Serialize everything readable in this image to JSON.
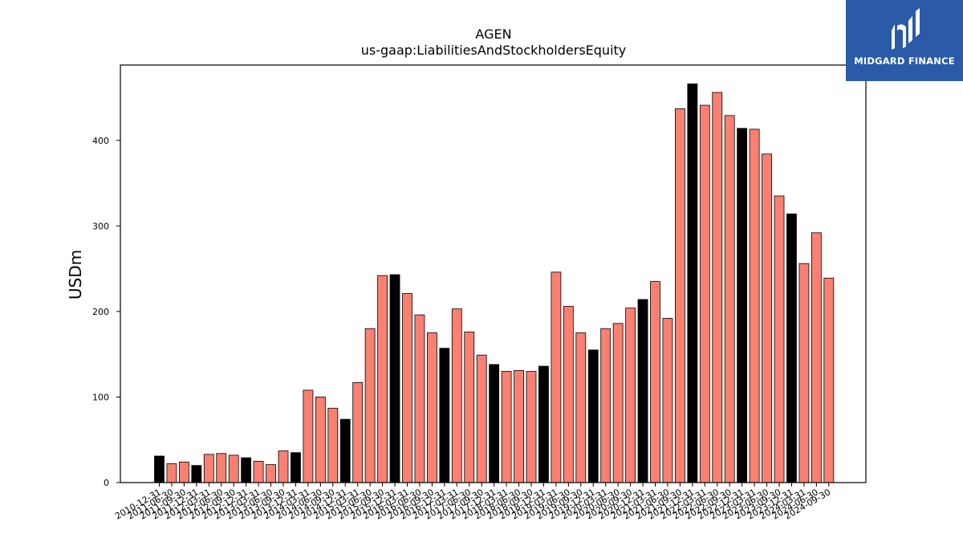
{
  "chart_data": {
    "type": "bar",
    "title": "AGEN",
    "subtitle": "us-gaap:LiabilitiesAndStockholdersEquity",
    "xlabel": "",
    "ylabel": "USDm",
    "ylim": [
      0,
      488
    ],
    "yticks": [
      0,
      100,
      200,
      300,
      400
    ],
    "grid": false,
    "colors": {
      "annual": "#000000",
      "quarterly": "#fa8072",
      "edge": "#000000"
    },
    "categories": [
      "2010-12-31",
      "2011-06-30",
      "2011-09-30",
      "2011-12-31",
      "2012-03-31",
      "2012-06-30",
      "2012-09-30",
      "2012-12-31",
      "2013-03-31",
      "2013-06-30",
      "2013-09-30",
      "2013-12-31",
      "2014-03-31",
      "2014-06-30",
      "2014-09-30",
      "2014-12-31",
      "2015-03-31",
      "2015-06-30",
      "2015-09-30",
      "2015-12-31",
      "2016-03-31",
      "2016-06-30",
      "2016-09-30",
      "2016-12-31",
      "2017-03-31",
      "2017-06-30",
      "2017-09-30",
      "2017-12-31",
      "2018-03-31",
      "2018-06-30",
      "2018-09-30",
      "2018-12-31",
      "2019-03-31",
      "2019-06-30",
      "2019-09-30",
      "2019-12-31",
      "2020-03-31",
      "2020-06-30",
      "2020-09-30",
      "2020-12-31",
      "2021-03-31",
      "2021-06-30",
      "2021-09-30",
      "2021-12-31",
      "2022-03-31",
      "2022-06-30",
      "2022-09-30",
      "2022-12-31",
      "2023-03-31",
      "2023-06-30",
      "2023-09-30",
      "2023-12-31",
      "2024-03-31",
      "2024-06-30",
      "2024-09-30"
    ],
    "values": [
      31,
      22,
      24,
      20,
      33,
      34,
      32,
      29,
      25,
      21,
      37,
      35,
      108,
      100,
      87,
      74,
      117,
      180,
      242,
      243,
      221,
      196,
      175,
      157,
      203,
      176,
      149,
      138,
      130,
      131,
      130,
      136,
      246,
      206,
      175,
      155,
      180,
      186,
      204,
      214,
      235,
      192,
      437,
      466,
      441,
      456,
      429,
      414,
      413,
      384,
      335,
      314,
      256,
      292,
      239
    ],
    "annual": [
      1,
      0,
      0,
      1,
      0,
      0,
      0,
      1,
      0,
      0,
      0,
      1,
      0,
      0,
      0,
      1,
      0,
      0,
      0,
      1,
      0,
      0,
      0,
      1,
      0,
      0,
      0,
      1,
      0,
      0,
      0,
      1,
      0,
      0,
      0,
      1,
      0,
      0,
      0,
      1,
      0,
      0,
      0,
      1,
      0,
      0,
      0,
      1,
      0,
      0,
      0,
      1,
      0,
      0,
      0
    ]
  },
  "logo": {
    "name": "midgard-finance-logo",
    "text": "MIDGARD FINANCE",
    "color": "#2a5aa8"
  }
}
